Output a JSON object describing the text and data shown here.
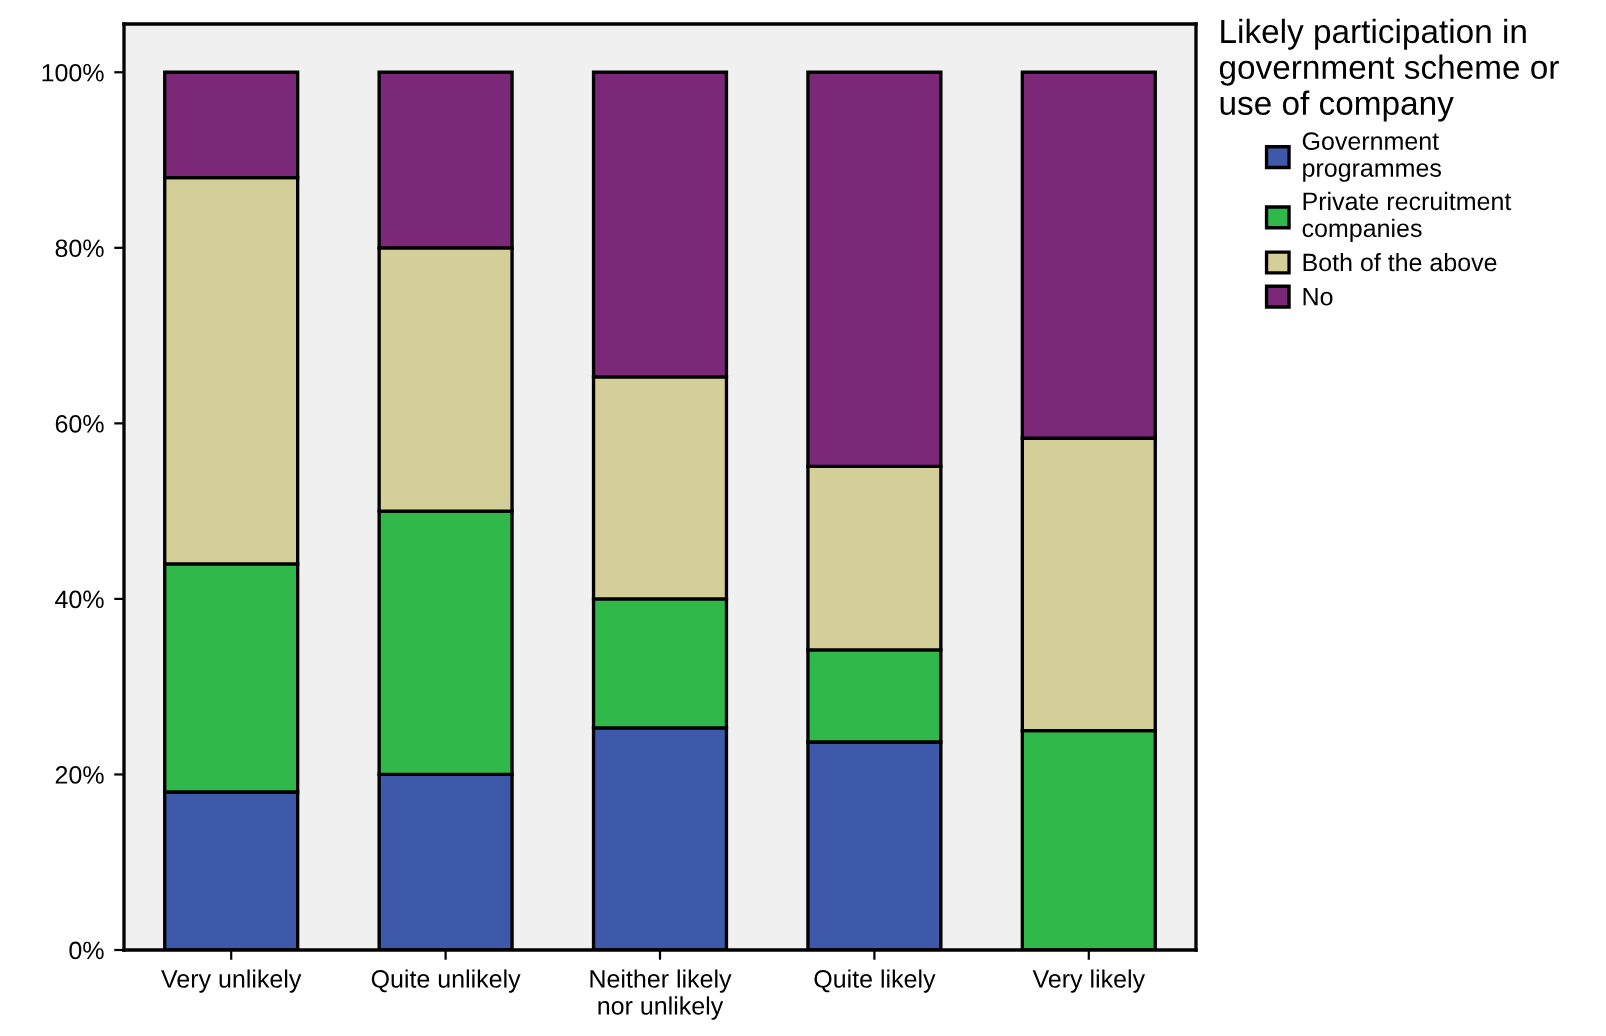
{
  "chart_data": {
    "type": "bar",
    "stacked": true,
    "categories": [
      "Very unlikely",
      "Quite unlikely",
      "Neither likely\nnor unlikely",
      "Quite likely",
      "Very likely"
    ],
    "legend_title": "Likely participation in\ngovernment scheme or\nuse of company",
    "series": [
      {
        "name": "Government\nprogrammes",
        "color": "#3f59aa",
        "values": [
          18,
          20,
          25.3,
          23.7,
          0
        ]
      },
      {
        "name": "Private recruitment\ncompanies",
        "color": "#30b84a",
        "values": [
          26,
          30,
          14.7,
          10.5,
          25
        ]
      },
      {
        "name": "Both of the above",
        "color": "#d4ce98",
        "values": [
          44,
          30,
          25.3,
          20.9,
          33.3
        ]
      },
      {
        "name": "No",
        "color": "#7b2879",
        "values": [
          12,
          20,
          34.7,
          44.9,
          41.7
        ]
      }
    ],
    "ylim": [
      0,
      105.5
    ],
    "yticks": [
      {
        "value": 0,
        "label": "0%"
      },
      {
        "value": 20,
        "label": "20%"
      },
      {
        "value": 40,
        "label": "40%"
      },
      {
        "value": 60,
        "label": "60%"
      },
      {
        "value": 80,
        "label": "80%"
      },
      {
        "value": 100,
        "label": "100%"
      }
    ],
    "grid": false,
    "legend": "top right"
  }
}
